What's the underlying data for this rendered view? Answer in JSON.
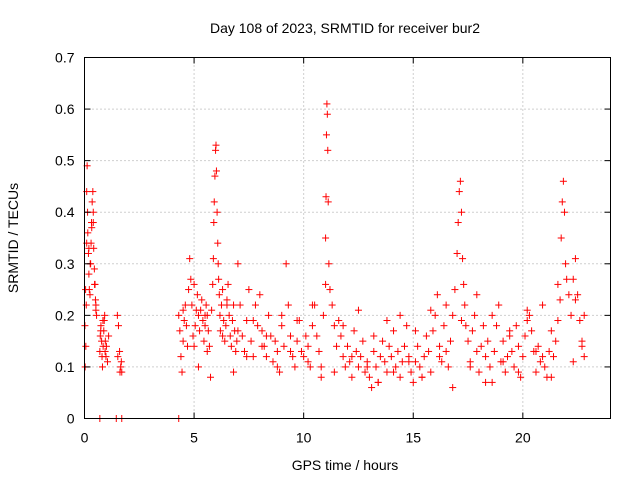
{
  "chart_data": {
    "type": "scatter",
    "title": "Day 108 of 2023, SRMTID for receiver bur2",
    "xlabel": "GPS time / hours",
    "ylabel": "SRMTID / TECUs",
    "xlim": [
      0,
      24
    ],
    "ylim": [
      0,
      0.7
    ],
    "xticks": [
      0,
      5,
      10,
      15,
      20
    ],
    "xtick_labels": [
      "0",
      "5",
      "10",
      "15",
      "20"
    ],
    "yticks": [
      0,
      0.1,
      0.2,
      0.3,
      0.4,
      0.5,
      0.6,
      0.7
    ],
    "ytick_labels": [
      "0",
      "0.1",
      "0.2",
      "0.3",
      "0.4",
      "0.5",
      "0.6",
      "0.7"
    ],
    "grid": true,
    "marker": "+",
    "color": "#ff0000",
    "series": [
      {
        "name": "SRMTID",
        "x": [
          0.02,
          0.05,
          0.08,
          0.1,
          0.12,
          0.15,
          0.18,
          0.2,
          0.22,
          0.25,
          0.28,
          0.3,
          0.32,
          0.35,
          0.38,
          0.4,
          0.42,
          0.45,
          0.48,
          0.5,
          0.52,
          0.55,
          0.03,
          0.06,
          0.1,
          0.14,
          0.2,
          0.26,
          0.33,
          0.4,
          0.46,
          0.52,
          0.7,
          0.72,
          0.75,
          0.78,
          0.8,
          0.82,
          0.85,
          0.88,
          0.9,
          0.92,
          0.95,
          0.98,
          1.0,
          0.74,
          0.84,
          0.94,
          1.05,
          1.1,
          1.5,
          1.55,
          1.6,
          1.65,
          1.7,
          1.52,
          1.62,
          1.68,
          0.7,
          1.45,
          1.7,
          4.3,
          4.3,
          4.35,
          4.4,
          4.45,
          4.5,
          4.55,
          4.6,
          4.65,
          4.7,
          4.75,
          4.8,
          4.85,
          4.9,
          4.95,
          5.0,
          5.05,
          5.1,
          5.15,
          5.2,
          5.25,
          5.3,
          5.35,
          5.4,
          5.45,
          5.5,
          5.55,
          5.6,
          5.65,
          5.7,
          5.75,
          5.8,
          5.85,
          5.88,
          5.9,
          5.92,
          5.95,
          5.98,
          6.0,
          6.02,
          6.05,
          6.08,
          6.1,
          6.12,
          6.15,
          6.18,
          6.2,
          6.25,
          6.3,
          6.35,
          6.4,
          6.45,
          6.5,
          6.55,
          6.6,
          6.65,
          6.7,
          6.75,
          6.8,
          6.85,
          6.9,
          6.95,
          7.0,
          7.1,
          7.2,
          7.3,
          7.4,
          7.5,
          7.6,
          7.7,
          7.8,
          7.9,
          8.0,
          8.1,
          8.2,
          8.3,
          8.4,
          8.5,
          8.6,
          8.7,
          8.8,
          8.9,
          9.0,
          9.1,
          9.2,
          9.3,
          9.4,
          9.5,
          9.6,
          9.7,
          9.8,
          9.9,
          10.0,
          10.1,
          10.2,
          10.3,
          10.4,
          10.5,
          10.6,
          10.7,
          10.8,
          10.9,
          11.0,
          11.02,
          11.04,
          11.06,
          11.08,
          11.1,
          11.12,
          11.15,
          11.2,
          11.3,
          11.4,
          11.5,
          11.6,
          11.7,
          11.8,
          11.9,
          12.0,
          12.1,
          12.2,
          12.3,
          12.4,
          12.5,
          12.6,
          12.7,
          12.8,
          12.9,
          13.0,
          13.1,
          13.2,
          13.3,
          13.4,
          13.5,
          13.6,
          13.7,
          13.8,
          13.9,
          14.0,
          14.1,
          14.2,
          14.3,
          14.4,
          14.5,
          14.6,
          14.7,
          14.8,
          14.9,
          15.0,
          15.1,
          15.2,
          15.3,
          15.4,
          15.5,
          15.6,
          15.7,
          15.8,
          15.9,
          16.0,
          16.1,
          16.2,
          16.3,
          16.4,
          16.5,
          16.6,
          16.7,
          16.8,
          16.9,
          17.0,
          17.05,
          17.1,
          17.15,
          17.2,
          17.25,
          17.3,
          17.35,
          17.4,
          17.5,
          17.6,
          17.7,
          17.8,
          17.9,
          18.0,
          18.1,
          18.2,
          18.3,
          18.4,
          18.5,
          18.6,
          18.7,
          18.8,
          18.9,
          19.0,
          19.1,
          19.2,
          19.3,
          19.4,
          19.5,
          19.6,
          19.7,
          19.8,
          19.9,
          20.0,
          20.1,
          20.2,
          20.3,
          20.4,
          20.5,
          20.6,
          20.7,
          20.8,
          20.9,
          21.0,
          21.1,
          21.2,
          21.3,
          21.4,
          21.5,
          21.6,
          21.7,
          21.75,
          21.8,
          21.85,
          21.9,
          21.95,
          22.0,
          22.1,
          22.2,
          22.3,
          22.4,
          22.5,
          22.6,
          22.7,
          22.8,
          5.2,
          5.6,
          6.3,
          6.8,
          7.4,
          8.1,
          8.8,
          9.4,
          10.2,
          10.8,
          11.4,
          12.2,
          12.9,
          13.4,
          14.1,
          14.8,
          15.4,
          16.2,
          16.8,
          17.6,
          18.3,
          19.1,
          19.8,
          20.6,
          21.3,
          22.3,
          22.7,
          4.5,
          5.0,
          5.5,
          6.5,
          7.0,
          7.7,
          8.3,
          9.0,
          9.7,
          10.4,
          11.0,
          11.8,
          12.5,
          13.2,
          13.8,
          14.4,
          15.1,
          15.8,
          16.5,
          17.2,
          17.9,
          18.6,
          19.4,
          20.2,
          20.9,
          21.6,
          22.4,
          22.8
        ],
        "y": [
          0.18,
          0.25,
          0.22,
          0.44,
          0.49,
          0.36,
          0.32,
          0.28,
          0.25,
          0.24,
          0.3,
          0.34,
          0.38,
          0.42,
          0.44,
          0.38,
          0.33,
          0.29,
          0.26,
          0.23,
          0.21,
          0.2,
          0.1,
          0.14,
          0.34,
          0.4,
          0.33,
          0.3,
          0.37,
          0.4,
          0.26,
          0.22,
          0.13,
          0.16,
          0.18,
          0.15,
          0.12,
          0.1,
          0.14,
          0.17,
          0.19,
          0.2,
          0.15,
          0.12,
          0.14,
          0.17,
          0.19,
          0.13,
          0.11,
          0.16,
          0.2,
          0.18,
          0.13,
          0.1,
          0.09,
          0.12,
          0.09,
          0.11,
          0.0,
          0.0,
          0.0,
          0.0,
          0.2,
          0.17,
          0.12,
          0.09,
          0.15,
          0.19,
          0.22,
          0.18,
          0.14,
          0.25,
          0.31,
          0.27,
          0.22,
          0.16,
          0.14,
          0.18,
          0.21,
          0.24,
          0.2,
          0.17,
          0.21,
          0.23,
          0.19,
          0.15,
          0.18,
          0.22,
          0.2,
          0.17,
          0.14,
          0.08,
          0.21,
          0.26,
          0.31,
          0.38,
          0.42,
          0.47,
          0.52,
          0.53,
          0.48,
          0.4,
          0.34,
          0.3,
          0.27,
          0.24,
          0.2,
          0.17,
          0.22,
          0.25,
          0.19,
          0.15,
          0.18,
          0.22,
          0.26,
          0.2,
          0.16,
          0.14,
          0.19,
          0.22,
          0.17,
          0.13,
          0.15,
          0.3,
          0.22,
          0.16,
          0.13,
          0.19,
          0.25,
          0.15,
          0.12,
          0.22,
          0.18,
          0.24,
          0.17,
          0.14,
          0.12,
          0.2,
          0.16,
          0.11,
          0.15,
          0.13,
          0.09,
          0.18,
          0.14,
          0.3,
          0.22,
          0.16,
          0.12,
          0.1,
          0.15,
          0.19,
          0.13,
          0.12,
          0.16,
          0.14,
          0.1,
          0.18,
          0.22,
          0.16,
          0.13,
          0.1,
          0.2,
          0.35,
          0.43,
          0.55,
          0.61,
          0.59,
          0.52,
          0.42,
          0.3,
          0.25,
          0.22,
          0.18,
          0.14,
          0.19,
          0.16,
          0.12,
          0.1,
          0.14,
          0.11,
          0.08,
          0.17,
          0.13,
          0.1,
          0.12,
          0.15,
          0.09,
          0.11,
          0.08,
          0.06,
          0.13,
          0.1,
          0.07,
          0.12,
          0.15,
          0.11,
          0.09,
          0.14,
          0.12,
          0.17,
          0.1,
          0.13,
          0.08,
          0.11,
          0.14,
          0.18,
          0.12,
          0.09,
          0.07,
          0.11,
          0.14,
          0.1,
          0.08,
          0.12,
          0.16,
          0.13,
          0.09,
          0.17,
          0.2,
          0.24,
          0.14,
          0.11,
          0.18,
          0.13,
          0.1,
          0.15,
          0.2,
          0.25,
          0.32,
          0.38,
          0.44,
          0.46,
          0.4,
          0.31,
          0.26,
          0.22,
          0.18,
          0.15,
          0.11,
          0.17,
          0.2,
          0.13,
          0.09,
          0.14,
          0.18,
          0.12,
          0.15,
          0.1,
          0.07,
          0.13,
          0.18,
          0.22,
          0.11,
          0.15,
          0.09,
          0.12,
          0.16,
          0.13,
          0.1,
          0.18,
          0.14,
          0.08,
          0.12,
          0.16,
          0.21,
          0.2,
          0.17,
          0.13,
          0.09,
          0.14,
          0.11,
          0.12,
          0.1,
          0.08,
          0.13,
          0.17,
          0.12,
          0.15,
          0.19,
          0.23,
          0.35,
          0.42,
          0.46,
          0.4,
          0.3,
          0.27,
          0.24,
          0.2,
          0.27,
          0.31,
          0.24,
          0.19,
          0.15,
          0.12,
          0.1,
          0.13,
          0.16,
          0.09,
          0.12,
          0.14,
          0.1,
          0.13,
          0.11,
          0.08,
          0.09,
          0.12,
          0.1,
          0.07,
          0.09,
          0.11,
          0.08,
          0.12,
          0.06,
          0.1,
          0.07,
          0.11,
          0.09,
          0.13,
          0.08,
          0.11,
          0.14,
          0.21,
          0.26,
          0.2,
          0.23,
          0.17,
          0.19,
          0.16,
          0.2,
          0.19,
          0.22,
          0.26,
          0.18,
          0.21,
          0.16,
          0.19,
          0.2,
          0.17,
          0.21,
          0.22,
          0.19,
          0.24,
          0.2,
          0.17,
          0.19,
          0.22,
          0.26,
          0.23,
          0.2
        ]
      }
    ]
  }
}
